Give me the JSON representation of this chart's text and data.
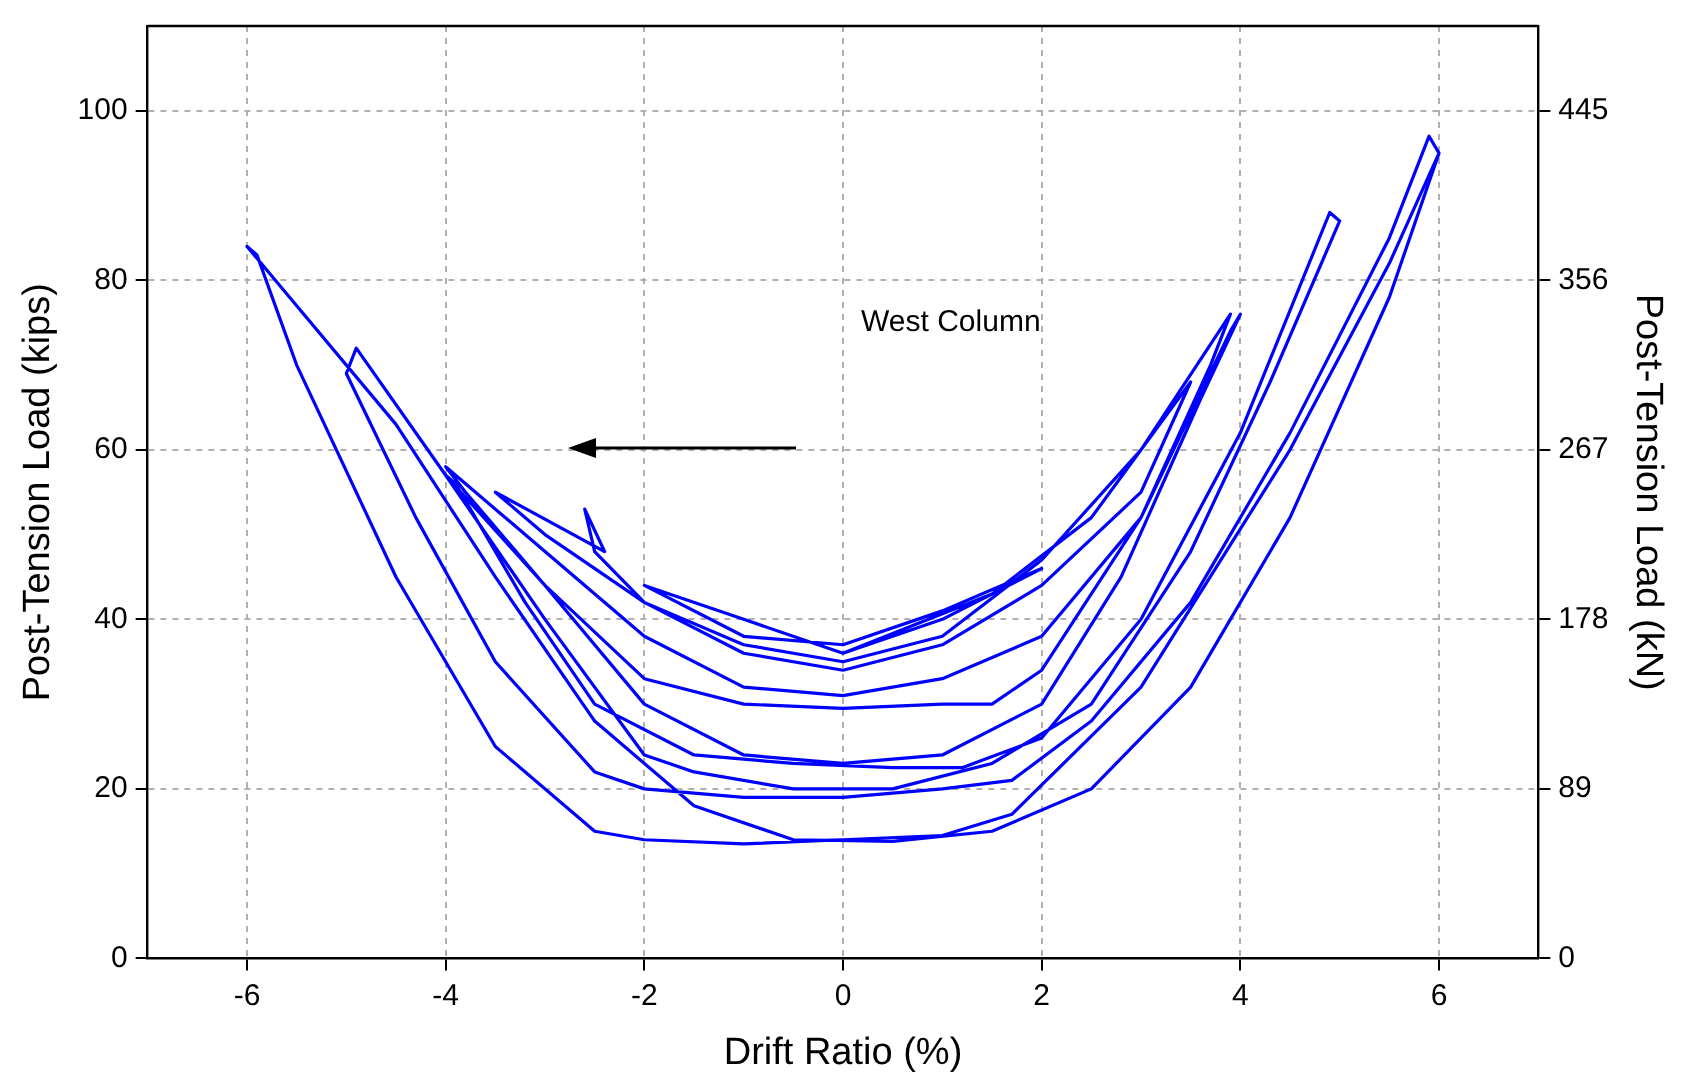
{
  "chart_data": {
    "type": "line",
    "xlabel": "Drift Ratio (%)",
    "ylabel": "Post-Tension Load (kips)",
    "y2label": "Post-Tension Load (kN)",
    "xlim": [
      -7,
      7
    ],
    "xticks": [
      -6,
      -4,
      -2,
      0,
      2,
      4,
      6
    ],
    "ylim": [
      0,
      110
    ],
    "yticks": [
      0,
      20,
      40,
      60,
      80,
      100
    ],
    "y2lim": [
      0,
      489.28
    ],
    "y2ticks": [
      {
        "value": 0,
        "label": "0"
      },
      {
        "value": 88.96,
        "label": "89"
      },
      {
        "value": 177.92,
        "label": "178"
      },
      {
        "value": 266.88,
        "label": "267"
      },
      {
        "value": 355.84,
        "label": "356"
      },
      {
        "value": 444.8,
        "label": "445"
      }
    ],
    "grid": true,
    "legend": false,
    "marker": "none",
    "line_style": "solid",
    "series": [
      {
        "name": "West Column",
        "color": "#0000ff",
        "x": [
          0,
          1,
          2,
          1,
          0,
          -1,
          -2,
          -1,
          0,
          1.5,
          2.5,
          3.5,
          3,
          2,
          1,
          0,
          -1,
          -2,
          -2.5,
          -2.6,
          -2.4,
          -3.5,
          -3,
          -2,
          -1,
          0,
          1,
          2,
          3,
          3.9,
          3.7,
          3,
          2,
          1,
          0,
          -1,
          -2,
          -3,
          -4,
          -3.8,
          -3,
          -2,
          -1,
          0,
          1,
          1.5,
          2,
          3,
          3.9,
          4,
          3.6,
          2.8,
          2,
          1,
          0,
          -1,
          -2,
          -3,
          -4,
          -3.9,
          -3.2,
          -2.5,
          -1.5,
          -0.5,
          0.5,
          1.2,
          2,
          3,
          4,
          4.9,
          5,
          4.3,
          3.5,
          2.5,
          1.5,
          0.5,
          -0.5,
          -1.5,
          -2,
          -3,
          -4,
          -4.9,
          -5,
          -4.3,
          -3.5,
          -2.5,
          -2,
          -1,
          0,
          1,
          1.7,
          2.5,
          3.5,
          4.5,
          5.5,
          5.9,
          6,
          5.5,
          4.5,
          3.5,
          2.5,
          1.5,
          0.5,
          -0.5,
          -1.5,
          -2.5,
          -3.5,
          -4.5,
          -5.5,
          -6,
          -5.9,
          -5.5,
          -4.5,
          -3.5,
          -2.5,
          -2,
          -1,
          0,
          1,
          1.7,
          3,
          4.5,
          5.5,
          6
        ],
        "values": [
          36,
          40,
          46,
          41,
          37,
          38,
          44,
          40,
          36,
          43,
          52,
          68,
          55,
          44,
          37,
          34,
          36,
          42,
          48,
          53,
          48,
          55,
          50,
          42,
          37,
          35,
          38,
          47,
          60,
          76,
          70,
          52,
          38,
          33,
          31,
          32,
          38,
          48,
          58,
          55,
          44,
          33,
          30,
          29.5,
          30,
          30,
          34,
          52,
          74,
          76,
          66,
          45,
          30,
          24,
          23,
          24,
          30,
          44,
          57,
          56,
          42,
          30,
          24,
          23,
          22.5,
          22.5,
          26,
          40,
          62,
          88,
          87,
          68,
          48,
          30,
          23,
          20,
          20,
          22,
          24,
          40,
          57,
          72,
          69,
          52,
          35,
          22,
          20,
          19,
          19,
          20,
          21,
          28,
          42,
          62,
          85,
          97,
          95,
          78,
          52,
          32,
          20,
          15,
          13.8,
          14,
          18,
          28,
          45,
          63,
          77,
          84,
          83,
          70,
          45,
          25,
          15,
          14,
          13.5,
          14,
          14.5,
          17,
          32,
          60,
          82,
          95
        ]
      }
    ]
  }
}
